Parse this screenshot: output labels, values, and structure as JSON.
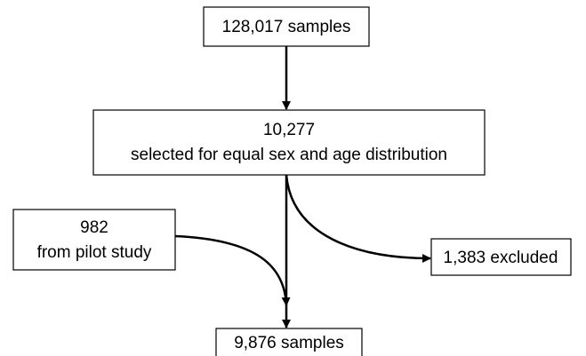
{
  "nodes": [
    {
      "lines": [
        "128,017 samples"
      ]
    },
    {
      "lines": [
        "10,277",
        "selected for equal sex and age distribution"
      ]
    },
    {
      "lines": [
        "982",
        "from pilot study"
      ]
    },
    {
      "lines": [
        "1,383 excluded"
      ]
    },
    {
      "lines": [
        "9,876 samples"
      ]
    }
  ]
}
